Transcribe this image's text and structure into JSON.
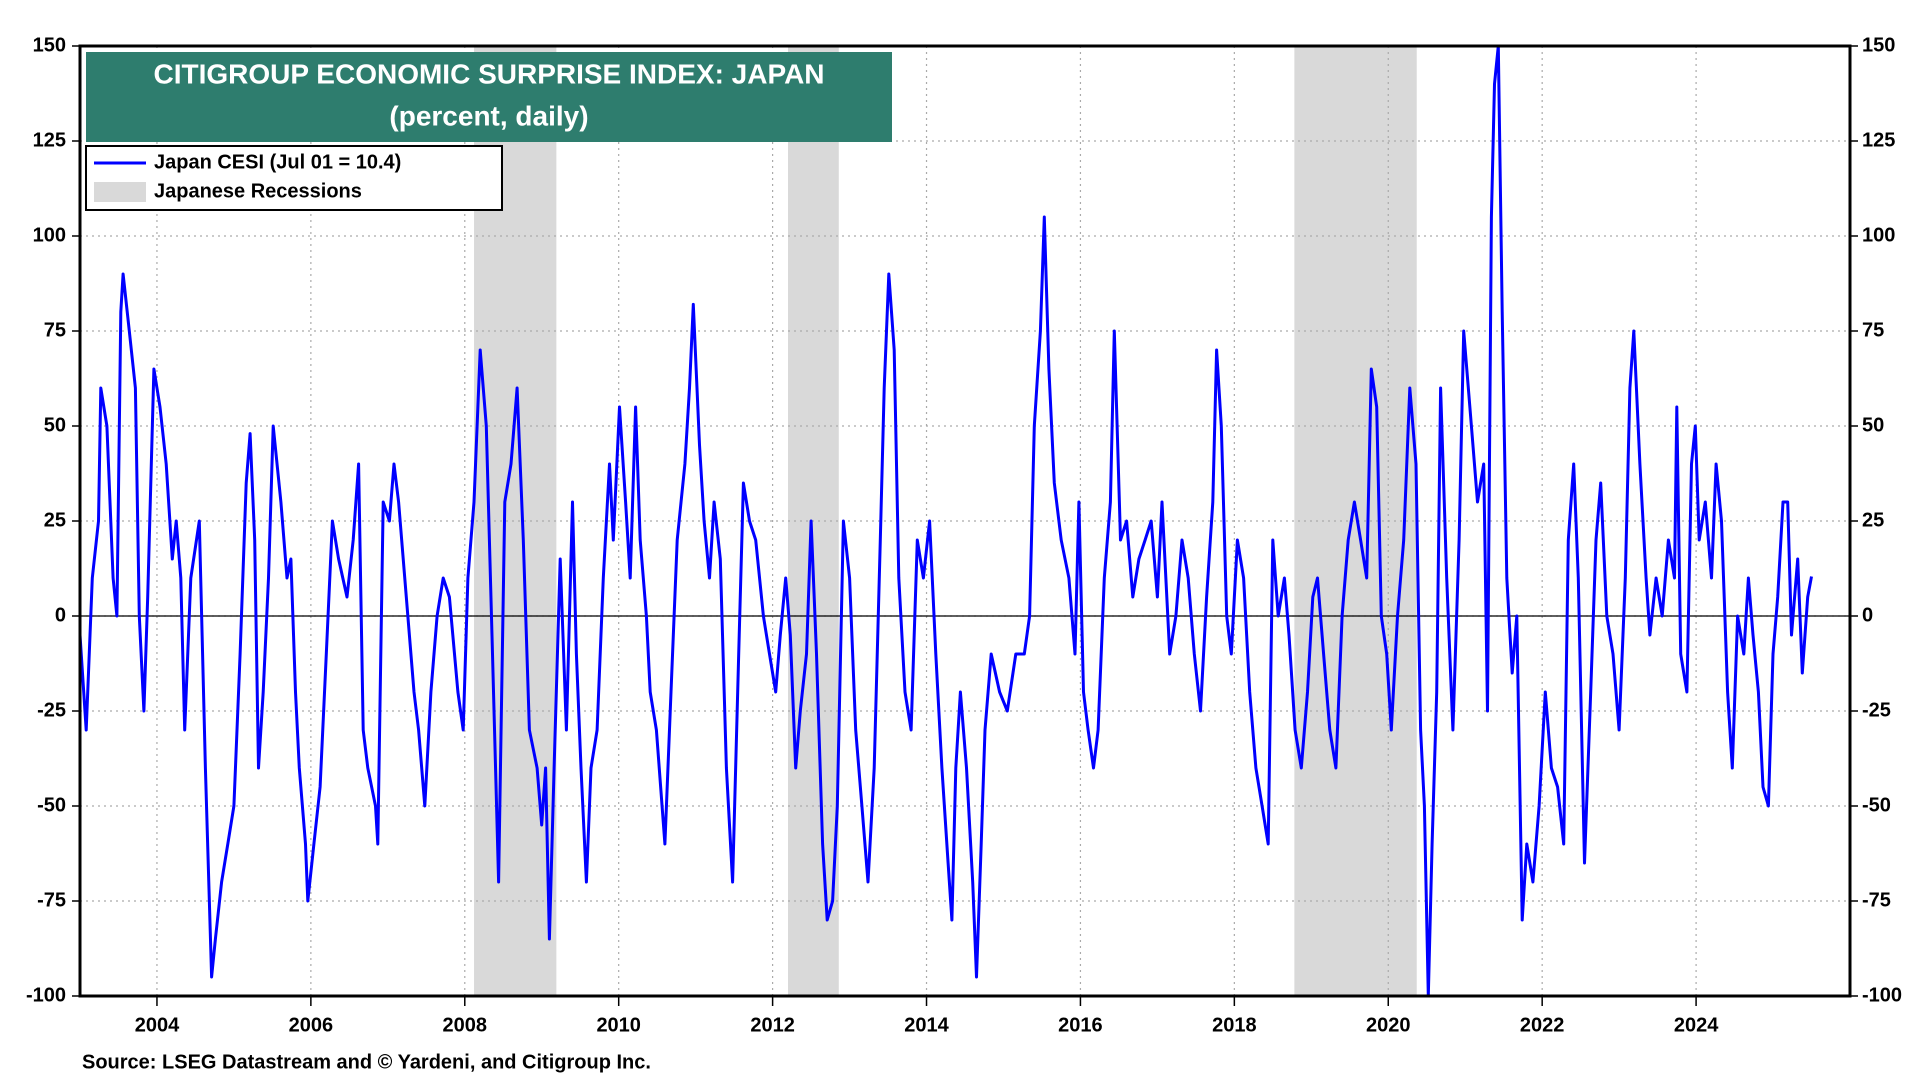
{
  "chart_data": {
    "type": "line",
    "title": "CITIGROUP ECONOMIC SURPRISE INDEX: JAPAN",
    "subtitle": "(percent, daily)",
    "source": "Source: LSEG Datastream and © Yardeni, and Citigroup Inc.",
    "xlim": [
      2003,
      2026
    ],
    "xticks": [
      2004,
      2006,
      2008,
      2010,
      2012,
      2014,
      2016,
      2018,
      2020,
      2022,
      2024
    ],
    "ylim": [
      -100,
      150
    ],
    "yticks": [
      -100,
      -75,
      -50,
      -25,
      0,
      25,
      50,
      75,
      100,
      125,
      150
    ],
    "grid": true,
    "legend": "top-left",
    "shaded_regions": {
      "name": "Japanese Recessions",
      "color": "#d9d9d9",
      "ranges": [
        [
          2008.12,
          2009.19
        ],
        [
          2012.2,
          2012.86
        ],
        [
          2018.78,
          2020.37
        ]
      ]
    },
    "x": [
      2003.0,
      2003.08,
      2003.16,
      2003.24,
      2003.27,
      2003.35,
      2003.43,
      2003.48,
      2003.53,
      2003.56,
      2003.64,
      2003.72,
      2003.77,
      2003.83,
      2003.88,
      2003.96,
      2004.04,
      2004.12,
      2004.2,
      2004.25,
      2004.31,
      2004.36,
      2004.44,
      2004.55,
      2004.63,
      2004.71,
      2004.76,
      2004.84,
      2004.92,
      2005.0,
      2005.08,
      2005.16,
      2005.21,
      2005.27,
      2005.32,
      2005.38,
      2005.45,
      2005.51,
      2005.61,
      2005.69,
      2005.74,
      2005.8,
      2005.85,
      2005.93,
      2005.96,
      2006.04,
      2006.12,
      2006.2,
      2006.28,
      2006.36,
      2006.47,
      2006.55,
      2006.62,
      2006.68,
      2006.74,
      2006.84,
      2006.87,
      2006.94,
      2007.02,
      2007.08,
      2007.14,
      2007.24,
      2007.34,
      2007.4,
      2007.48,
      2007.56,
      2007.64,
      2007.72,
      2007.8,
      2007.91,
      2007.98,
      2008.04,
      2008.12,
      2008.2,
      2008.28,
      2008.36,
      2008.44,
      2008.52,
      2008.6,
      2008.68,
      2008.76,
      2008.84,
      2008.94,
      2009.0,
      2009.05,
      2009.1,
      2009.16,
      2009.24,
      2009.32,
      2009.4,
      2009.45,
      2009.51,
      2009.58,
      2009.64,
      2009.72,
      2009.8,
      2009.88,
      2009.93,
      2010.01,
      2010.09,
      2010.15,
      2010.22,
      2010.28,
      2010.36,
      2010.41,
      2010.49,
      2010.6,
      2010.68,
      2010.76,
      2010.86,
      2010.92,
      2010.97,
      2011.05,
      2011.11,
      2011.18,
      2011.24,
      2011.32,
      2011.4,
      2011.48,
      2011.56,
      2011.62,
      2011.7,
      2011.78,
      2011.88,
      2011.96,
      2012.04,
      2012.1,
      2012.17,
      2012.23,
      2012.3,
      2012.36,
      2012.44,
      2012.5,
      2012.57,
      2012.65,
      2012.71,
      2012.78,
      2012.84,
      2012.92,
      2013.0,
      2013.08,
      2013.16,
      2013.24,
      2013.32,
      2013.4,
      2013.45,
      2013.51,
      2013.58,
      2013.64,
      2013.72,
      2013.8,
      2013.88,
      2013.96,
      2014.04,
      2014.12,
      2014.2,
      2014.28,
      2014.33,
      2014.38,
      2014.44,
      2014.52,
      2014.6,
      2014.65,
      2014.71,
      2014.76,
      2014.84,
      2014.95,
      2015.05,
      2015.16,
      2015.27,
      2015.34,
      2015.4,
      2015.48,
      2015.53,
      2015.59,
      2015.66,
      2015.75,
      2015.85,
      2015.93,
      2015.98,
      2016.04,
      2016.1,
      2016.17,
      2016.23,
      2016.31,
      2016.39,
      2016.44,
      2016.52,
      2016.6,
      2016.68,
      2016.76,
      2016.84,
      2016.92,
      2017.0,
      2017.06,
      2017.16,
      2017.24,
      2017.32,
      2017.4,
      2017.48,
      2017.56,
      2017.64,
      2017.72,
      2017.77,
      2017.83,
      2017.9,
      2017.96,
      2018.04,
      2018.12,
      2018.2,
      2018.28,
      2018.36,
      2018.44,
      2018.5,
      2018.57,
      2018.65,
      2018.71,
      2018.79,
      2018.87,
      2018.95,
      2019.02,
      2019.08,
      2019.16,
      2019.24,
      2019.32,
      2019.4,
      2019.48,
      2019.56,
      2019.64,
      2019.72,
      2019.78,
      2019.85,
      2019.91,
      2019.98,
      2020.04,
      2020.12,
      2020.2,
      2020.28,
      2020.36,
      2020.42,
      2020.47,
      2020.52,
      2020.57,
      2020.63,
      2020.68,
      2020.76,
      2020.84,
      2020.92,
      2020.98,
      2021.08,
      2021.16,
      2021.24,
      2021.29,
      2021.34,
      2021.38,
      2021.43,
      2021.48,
      2021.54,
      2021.61,
      2021.67,
      2021.74,
      2021.8,
      2021.88,
      2021.96,
      2022.04,
      2022.12,
      2022.2,
      2022.28,
      2022.34,
      2022.41,
      2022.47,
      2022.55,
      2022.63,
      2022.7,
      2022.76,
      2022.84,
      2022.92,
      2023.0,
      2023.08,
      2023.14,
      2023.19,
      2023.27,
      2023.35,
      2023.4,
      2023.48,
      2023.56,
      2023.64,
      2023.72,
      2023.75,
      2023.8,
      2023.88,
      2023.94,
      2023.99,
      2024.04,
      2024.12,
      2024.2,
      2024.26,
      2024.33,
      2024.41,
      2024.47,
      2024.54,
      2024.62,
      2024.68,
      2024.74,
      2024.81,
      2024.87,
      2024.94,
      2025.0,
      2025.06,
      2025.13,
      2025.19,
      2025.24,
      2025.32,
      2025.38,
      2025.45,
      2025.5
    ],
    "series": [
      {
        "name": "Japan CESI (Jul 01 = 10.4)",
        "color": "#0000ff",
        "values": [
          -5,
          -30,
          10,
          25,
          60,
          50,
          10,
          0,
          80,
          90,
          75,
          60,
          0,
          -25,
          5,
          65,
          55,
          40,
          15,
          25,
          10,
          -30,
          10,
          25,
          -40,
          -95,
          -85,
          -70,
          -60,
          -50,
          -10,
          35,
          48,
          20,
          -40,
          -20,
          10,
          50,
          30,
          10,
          15,
          -20,
          -40,
          -60,
          -75,
          -60,
          -45,
          -10,
          25,
          15,
          5,
          20,
          40,
          -30,
          -40,
          -50,
          -60,
          30,
          25,
          40,
          30,
          5,
          -20,
          -30,
          -50,
          -20,
          0,
          10,
          5,
          -20,
          -30,
          10,
          30,
          70,
          50,
          -10,
          -70,
          30,
          40,
          60,
          20,
          -30,
          -40,
          -55,
          -40,
          -85,
          -40,
          15,
          -30,
          30,
          -10,
          -40,
          -70,
          -40,
          -30,
          10,
          40,
          20,
          55,
          30,
          10,
          55,
          20,
          0,
          -20,
          -30,
          -60,
          -20,
          20,
          40,
          60,
          82,
          45,
          25,
          10,
          30,
          15,
          -40,
          -70,
          -10,
          35,
          25,
          20,
          0,
          -10,
          -20,
          -5,
          10,
          -5,
          -40,
          -25,
          -10,
          25,
          -10,
          -60,
          -80,
          -75,
          -50,
          25,
          10,
          -30,
          -50,
          -70,
          -40,
          20,
          60,
          90,
          70,
          10,
          -20,
          -30,
          20,
          10,
          25,
          -10,
          -40,
          -65,
          -80,
          -40,
          -20,
          -40,
          -70,
          -95,
          -60,
          -30,
          -10,
          -20,
          -25,
          -10,
          -10,
          0,
          50,
          75,
          105,
          65,
          35,
          20,
          10,
          -10,
          30,
          -20,
          -30,
          -40,
          -30,
          10,
          30,
          75,
          20,
          25,
          5,
          15,
          20,
          25,
          5,
          30,
          -10,
          0,
          20,
          10,
          -10,
          -25,
          5,
          30,
          70,
          50,
          0,
          -10,
          20,
          10,
          -20,
          -40,
          -50,
          -60,
          20,
          0,
          10,
          -5,
          -30,
          -40,
          -20,
          5,
          10,
          -10,
          -30,
          -40,
          0,
          20,
          30,
          20,
          10,
          65,
          55,
          0,
          -10,
          -30,
          0,
          20,
          60,
          40,
          -30,
          -50,
          -100,
          -60,
          -20,
          60,
          10,
          -30,
          20,
          75,
          50,
          30,
          40,
          -25,
          105,
          140,
          150,
          80,
          10,
          -15,
          0,
          -80,
          -60,
          -70,
          -50,
          -20,
          -40,
          -45,
          -60,
          20,
          40,
          10,
          -65,
          -20,
          20,
          35,
          0,
          -10,
          -30,
          10,
          60,
          75,
          40,
          10,
          -5,
          10,
          0,
          20,
          10,
          55,
          -10,
          -20,
          40,
          50,
          20,
          30,
          10,
          40,
          25,
          -20,
          -40,
          0,
          -10,
          10,
          -5,
          -20,
          -45,
          -50,
          -10,
          5,
          30,
          30,
          -5,
          15,
          -15,
          5,
          10.4
        ]
      }
    ]
  }
}
